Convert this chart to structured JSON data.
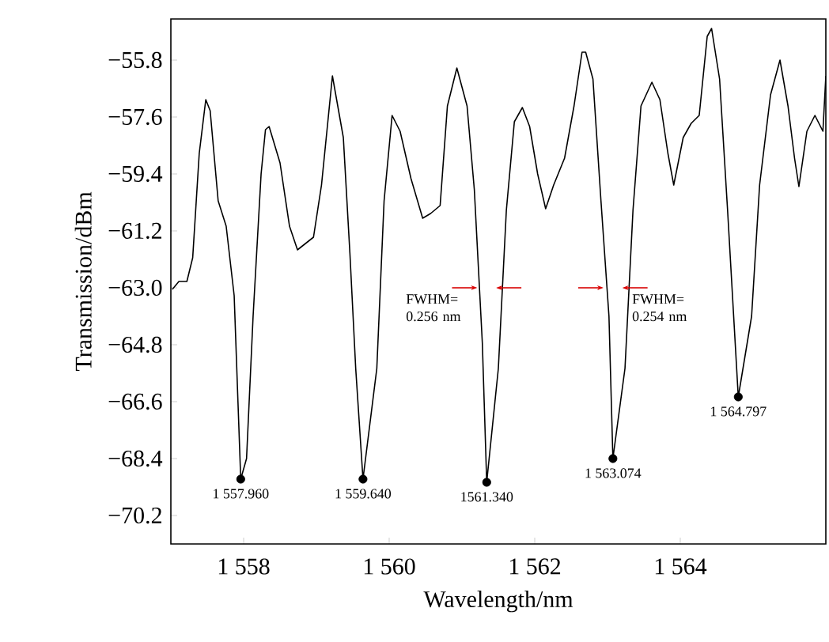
{
  "chart_data": {
    "type": "line",
    "xlabel": "Wavelength/nm",
    "ylabel": "Transmission/dBm",
    "xlim": [
      1557.0,
      1566.0
    ],
    "ylim": [
      -71.1,
      -54.5
    ],
    "xticks": [
      {
        "value": 1558,
        "label": "1 558"
      },
      {
        "value": 1560,
        "label": "1 560"
      },
      {
        "value": 1562,
        "label": "1 562"
      },
      {
        "value": 1564,
        "label": "1 564"
      }
    ],
    "yticks": [
      {
        "value": -55.8,
        "label": "−55.8"
      },
      {
        "value": -57.6,
        "label": "−57.6"
      },
      {
        "value": -59.4,
        "label": "−59.4"
      },
      {
        "value": -61.2,
        "label": "−61.2"
      },
      {
        "value": -63.0,
        "label": "−63.0"
      },
      {
        "value": -64.8,
        "label": "−64.8"
      },
      {
        "value": -66.6,
        "label": "−66.6"
      },
      {
        "value": -68.4,
        "label": "−68.4"
      },
      {
        "value": -70.2,
        "label": "−70.2"
      }
    ],
    "line_style": "solid",
    "series": [
      {
        "color": "#000000",
        "marker": "none",
        "x": [
          1557.02,
          1557.11,
          1557.22,
          1557.3,
          1557.39,
          1557.48,
          1557.54,
          1557.65,
          1557.76,
          1557.87,
          1557.96,
          1558.04,
          1558.13,
          1558.24,
          1558.3,
          1558.35,
          1558.5,
          1558.63,
          1558.74,
          1558.96,
          1559.07,
          1559.22,
          1559.37,
          1559.46,
          1559.54,
          1559.64,
          1559.83,
          1559.93,
          1560.04,
          1560.15,
          1560.3,
          1560.46,
          1560.57,
          1560.7,
          1560.8,
          1560.93,
          1561.07,
          1561.17,
          1561.28,
          1561.34,
          1561.5,
          1561.61,
          1561.72,
          1561.83,
          1561.93,
          1562.04,
          1562.15,
          1562.26,
          1562.41,
          1562.54,
          1562.65,
          1562.7,
          1562.8,
          1562.91,
          1563.02,
          1563.074,
          1563.24,
          1563.35,
          1563.46,
          1563.61,
          1563.72,
          1563.83,
          1563.91,
          1564.04,
          1564.15,
          1564.26,
          1564.37,
          1564.43,
          1564.54,
          1564.65,
          1564.797,
          1564.98,
          1565.09,
          1565.24,
          1565.37,
          1565.48,
          1565.57,
          1565.63,
          1565.74,
          1565.85,
          1565.96,
          1566.0
        ],
        "values": [
          -63.05,
          -62.8,
          -62.8,
          -62.05,
          -58.75,
          -57.05,
          -57.4,
          -60.25,
          -61.05,
          -63.25,
          -69.05,
          -68.4,
          -63.9,
          -59.4,
          -58.0,
          -57.9,
          -59.05,
          -61.05,
          -61.8,
          -61.4,
          -59.75,
          -56.3,
          -58.25,
          -61.9,
          -65.55,
          -69.05,
          -65.55,
          -60.25,
          -57.55,
          -58.05,
          -59.55,
          -60.8,
          -60.65,
          -60.4,
          -57.25,
          -56.05,
          -57.25,
          -59.9,
          -64.75,
          -69.15,
          -65.55,
          -60.55,
          -57.75,
          -57.3,
          -57.9,
          -59.4,
          -60.5,
          -59.75,
          -58.9,
          -57.25,
          -55.55,
          -55.55,
          -56.4,
          -60.25,
          -63.9,
          -68.4,
          -65.55,
          -60.55,
          -57.25,
          -56.5,
          -57.05,
          -58.75,
          -59.75,
          -58.25,
          -57.8,
          -57.55,
          -55.05,
          -54.8,
          -56.4,
          -60.55,
          -66.45,
          -63.9,
          -59.75,
          -56.9,
          -55.8,
          -57.25,
          -58.9,
          -59.8,
          -58.05,
          -57.55,
          -58.05,
          -56.3
        ]
      },
      {
        "type": "scatter",
        "color": "#000000",
        "marker": "circle",
        "x": [
          1557.96,
          1559.64,
          1561.34,
          1563.074,
          1564.797
        ],
        "values": [
          -69.05,
          -69.05,
          -69.15,
          -68.4,
          -66.45
        ]
      }
    ],
    "annotations": [
      {
        "text": "1 557.960",
        "x": 1557.96,
        "y": -69.05
      },
      {
        "text": "1 559.640",
        "x": 1559.64,
        "y": -69.05
      },
      {
        "text": "1561.340",
        "x": 1561.34,
        "y": -69.15
      },
      {
        "text": "1 563.074",
        "x": 1563.074,
        "y": -68.4
      },
      {
        "text": "1 564.797",
        "x": 1564.797,
        "y": -66.45
      },
      {
        "text": "FWHM= 0.256 nm",
        "x": 1561.34,
        "y": -63.0
      },
      {
        "text": "FWHM= 0.254 nm",
        "x": 1563.074,
        "y": -63.0
      }
    ]
  }
}
